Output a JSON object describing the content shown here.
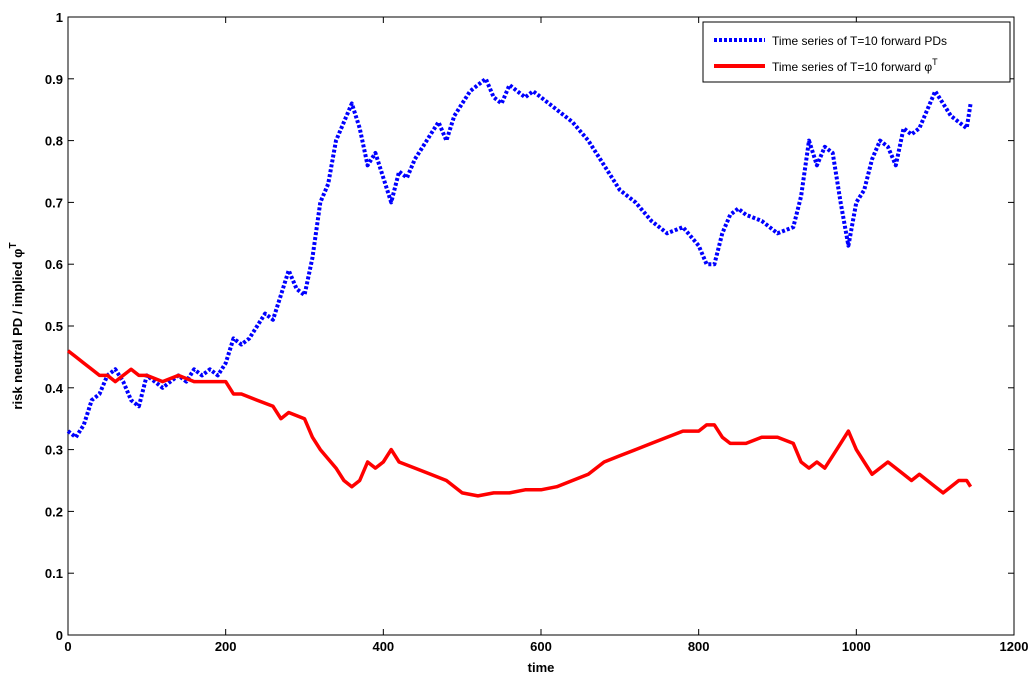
{
  "chart_data": {
    "type": "line",
    "xlabel": "time",
    "ylabel_main": "risk neutral PD / implied φ",
    "ylabel_sup": "T",
    "xlim": [
      0,
      1200
    ],
    "ylim": [
      0,
      1
    ],
    "xticks": [
      "0",
      "200",
      "400",
      "600",
      "800",
      "1000",
      "1200"
    ],
    "yticks": [
      "0",
      "0.1",
      "0.2",
      "0.3",
      "0.4",
      "0.5",
      "0.6",
      "0.7",
      "0.8",
      "0.9",
      "1"
    ],
    "grid": false,
    "legend_position": "top-right",
    "series": [
      {
        "name": "Time series of T=10 forward PDs",
        "color": "#0000ff",
        "style": "dotted",
        "x": [
          0,
          10,
          20,
          30,
          40,
          50,
          60,
          70,
          80,
          90,
          100,
          110,
          120,
          130,
          140,
          150,
          160,
          170,
          180,
          190,
          200,
          210,
          220,
          230,
          240,
          250,
          260,
          270,
          280,
          290,
          300,
          310,
          320,
          330,
          340,
          350,
          360,
          370,
          380,
          390,
          400,
          410,
          420,
          430,
          440,
          450,
          460,
          470,
          480,
          490,
          500,
          510,
          520,
          530,
          540,
          550,
          560,
          570,
          580,
          590,
          600,
          620,
          640,
          660,
          680,
          700,
          720,
          740,
          760,
          780,
          800,
          810,
          820,
          830,
          840,
          850,
          860,
          880,
          900,
          920,
          930,
          940,
          950,
          960,
          970,
          980,
          990,
          1000,
          1010,
          1020,
          1030,
          1040,
          1050,
          1060,
          1070,
          1080,
          1090,
          1100,
          1110,
          1120,
          1130,
          1140,
          1145
        ],
        "y": [
          0.33,
          0.32,
          0.34,
          0.38,
          0.39,
          0.42,
          0.43,
          0.41,
          0.38,
          0.37,
          0.42,
          0.41,
          0.4,
          0.41,
          0.42,
          0.41,
          0.43,
          0.42,
          0.43,
          0.42,
          0.44,
          0.48,
          0.47,
          0.48,
          0.5,
          0.52,
          0.51,
          0.55,
          0.59,
          0.56,
          0.55,
          0.61,
          0.7,
          0.73,
          0.8,
          0.83,
          0.86,
          0.82,
          0.76,
          0.78,
          0.74,
          0.7,
          0.75,
          0.74,
          0.77,
          0.79,
          0.81,
          0.83,
          0.8,
          0.84,
          0.86,
          0.88,
          0.89,
          0.9,
          0.87,
          0.86,
          0.89,
          0.88,
          0.87,
          0.88,
          0.87,
          0.85,
          0.83,
          0.8,
          0.76,
          0.72,
          0.7,
          0.67,
          0.65,
          0.66,
          0.63,
          0.6,
          0.6,
          0.65,
          0.68,
          0.69,
          0.68,
          0.67,
          0.65,
          0.66,
          0.71,
          0.8,
          0.76,
          0.79,
          0.78,
          0.7,
          0.63,
          0.7,
          0.72,
          0.77,
          0.8,
          0.79,
          0.76,
          0.82,
          0.81,
          0.82,
          0.85,
          0.88,
          0.86,
          0.84,
          0.83,
          0.82,
          0.86
        ]
      },
      {
        "name": "Time series of T=10 forward φ",
        "name_sup": "T",
        "color": "#ff0000",
        "style": "solid",
        "x": [
          0,
          10,
          20,
          30,
          40,
          50,
          60,
          70,
          80,
          90,
          100,
          120,
          140,
          160,
          180,
          200,
          210,
          220,
          240,
          260,
          270,
          280,
          300,
          310,
          320,
          340,
          350,
          360,
          370,
          380,
          390,
          400,
          410,
          420,
          440,
          460,
          480,
          500,
          520,
          540,
          560,
          580,
          600,
          620,
          640,
          660,
          680,
          700,
          720,
          740,
          760,
          780,
          800,
          810,
          820,
          830,
          840,
          860,
          880,
          900,
          920,
          930,
          940,
          950,
          960,
          970,
          980,
          990,
          1000,
          1010,
          1020,
          1030,
          1040,
          1050,
          1060,
          1070,
          1080,
          1090,
          1100,
          1110,
          1120,
          1130,
          1140,
          1145
        ],
        "y": [
          0.46,
          0.45,
          0.44,
          0.43,
          0.42,
          0.42,
          0.41,
          0.42,
          0.43,
          0.42,
          0.42,
          0.41,
          0.42,
          0.41,
          0.41,
          0.41,
          0.39,
          0.39,
          0.38,
          0.37,
          0.35,
          0.36,
          0.35,
          0.32,
          0.3,
          0.27,
          0.25,
          0.24,
          0.25,
          0.28,
          0.27,
          0.28,
          0.3,
          0.28,
          0.27,
          0.26,
          0.25,
          0.23,
          0.225,
          0.23,
          0.23,
          0.235,
          0.235,
          0.24,
          0.25,
          0.26,
          0.28,
          0.29,
          0.3,
          0.31,
          0.32,
          0.33,
          0.33,
          0.34,
          0.34,
          0.32,
          0.31,
          0.31,
          0.32,
          0.32,
          0.31,
          0.28,
          0.27,
          0.28,
          0.27,
          0.29,
          0.31,
          0.33,
          0.3,
          0.28,
          0.26,
          0.27,
          0.28,
          0.27,
          0.26,
          0.25,
          0.26,
          0.25,
          0.24,
          0.23,
          0.24,
          0.25,
          0.25,
          0.24
        ]
      }
    ]
  }
}
